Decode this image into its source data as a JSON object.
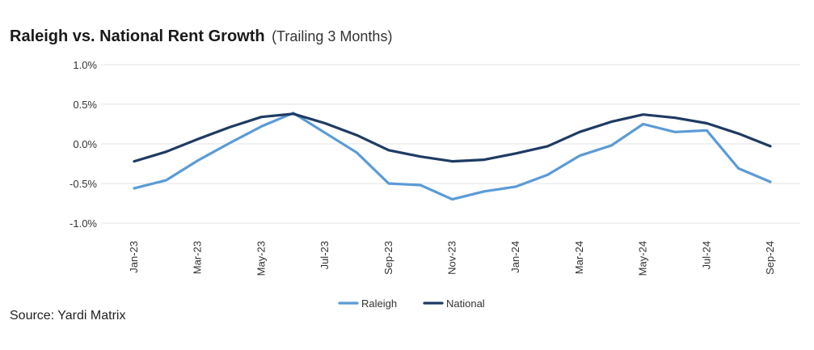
{
  "chart_data": {
    "type": "line",
    "title": "Raleigh vs. National Rent Growth",
    "subtitle": "(Trailing 3 Months)",
    "xlabel": "",
    "ylabel": "",
    "ylim": [
      -1.0,
      1.0
    ],
    "yticks": [
      1.0,
      0.5,
      0.0,
      -0.5,
      -1.0
    ],
    "ytick_labels": [
      "1.0%",
      "0.5%",
      "0.0%",
      "-0.5%",
      "-1.0%"
    ],
    "x": [
      "Jan-23",
      "Feb-23",
      "Mar-23",
      "Apr-23",
      "May-23",
      "Jun-23",
      "Jul-23",
      "Aug-23",
      "Sep-23",
      "Oct-23",
      "Nov-23",
      "Dec-23",
      "Jan-24",
      "Feb-24",
      "Mar-24",
      "Apr-24",
      "May-24",
      "Jun-24",
      "Jul-24",
      "Aug-24",
      "Sep-24"
    ],
    "x_tick_labels": [
      "Jan-23",
      "Mar-23",
      "May-23",
      "Jul-23",
      "Sep-23",
      "Nov-23",
      "Jan-24",
      "Mar-24",
      "May-24",
      "Jul-24",
      "Sep-24"
    ],
    "x_tick_indices": [
      0,
      2,
      4,
      6,
      8,
      10,
      12,
      14,
      16,
      18,
      20
    ],
    "grid": true,
    "legend_position": "bottom-center",
    "series": [
      {
        "name": "Raleigh",
        "color": "#5b9bd5",
        "values": [
          -0.56,
          -0.46,
          -0.21,
          0.01,
          0.22,
          0.39,
          0.14,
          -0.11,
          -0.5,
          -0.52,
          -0.7,
          -0.6,
          -0.54,
          -0.39,
          -0.15,
          -0.02,
          0.25,
          0.15,
          0.17,
          -0.31,
          -0.48
        ]
      },
      {
        "name": "National",
        "color": "#1f3b63",
        "values": [
          -0.22,
          -0.1,
          0.06,
          0.21,
          0.34,
          0.38,
          0.26,
          0.11,
          -0.08,
          -0.16,
          -0.22,
          -0.2,
          -0.12,
          -0.03,
          0.15,
          0.28,
          0.37,
          0.33,
          0.26,
          0.13,
          -0.03
        ]
      }
    ]
  },
  "source": "Source: Yardi Matrix"
}
